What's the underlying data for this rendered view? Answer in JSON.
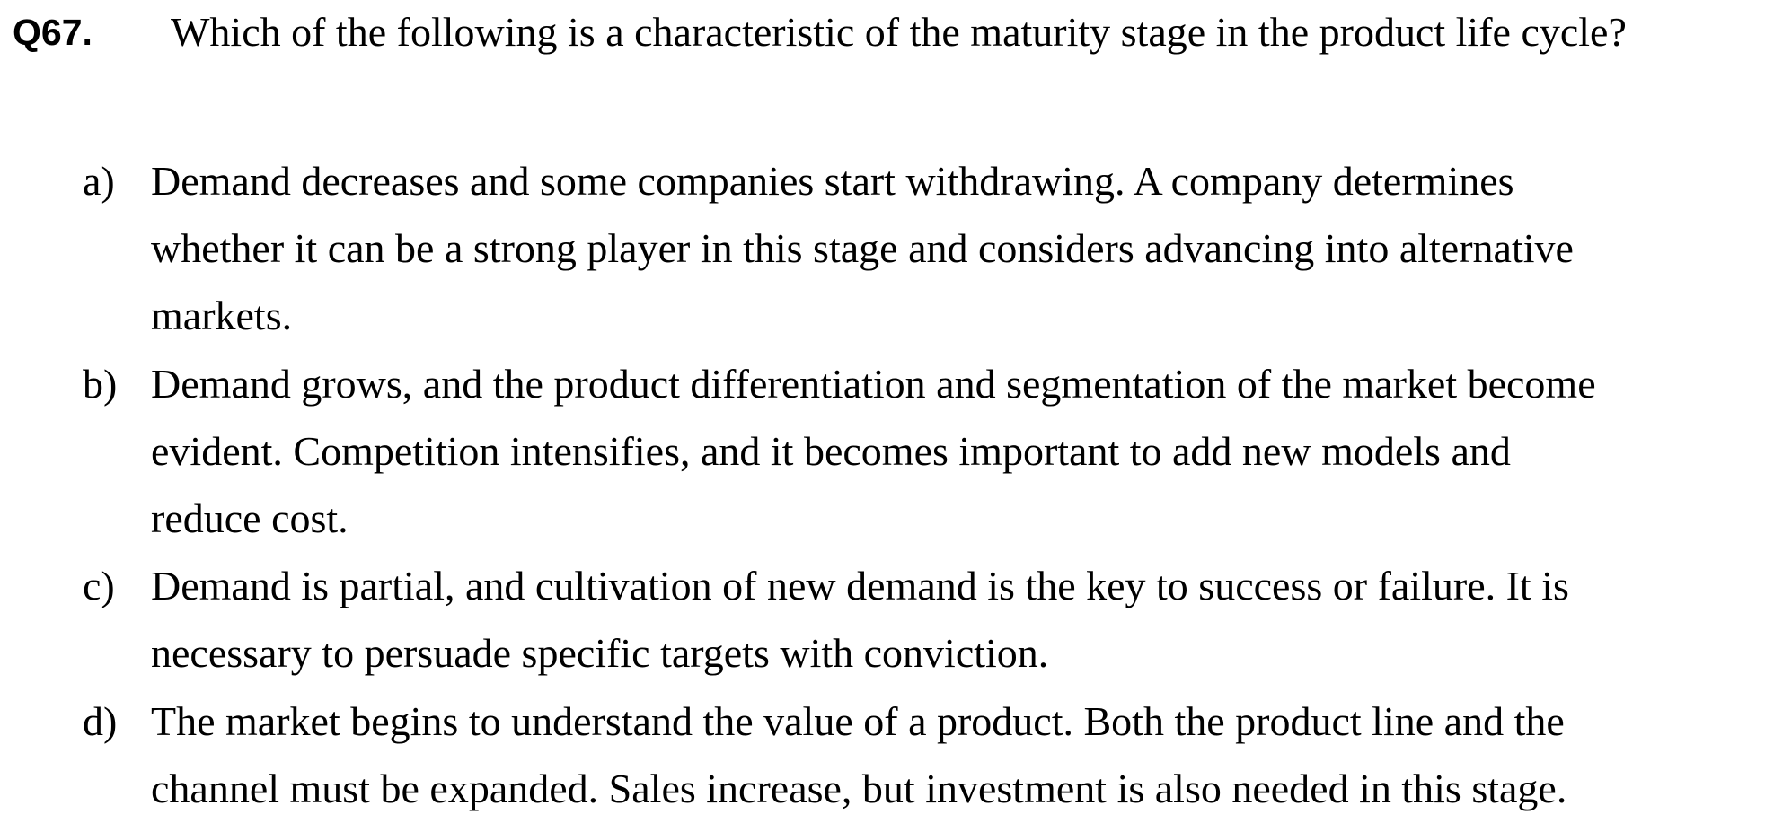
{
  "question": {
    "number": "Q67.",
    "text": "Which of the following is a characteristic of the maturity stage in the product life cycle?"
  },
  "options": [
    {
      "letter": "a)",
      "lines": [
        "Demand decreases and some companies start withdrawing. A company determines",
        "whether it can be a strong player in this stage and considers advancing into alternative",
        "markets."
      ]
    },
    {
      "letter": "b)",
      "lines": [
        "Demand grows, and the product differentiation and segmentation of the market become",
        "evident. Competition intensifies, and it becomes important to add new models and",
        "reduce cost."
      ]
    },
    {
      "letter": "c)",
      "lines": [
        "Demand is partial, and cultivation of new demand is the key to success or failure. It is",
        "necessary to persuade specific targets with conviction."
      ]
    },
    {
      "letter": "d)",
      "lines": [
        "The market begins to understand the value of a product. Both the product line and the",
        "channel must be expanded. Sales increase, but investment is also needed in this stage."
      ]
    }
  ]
}
